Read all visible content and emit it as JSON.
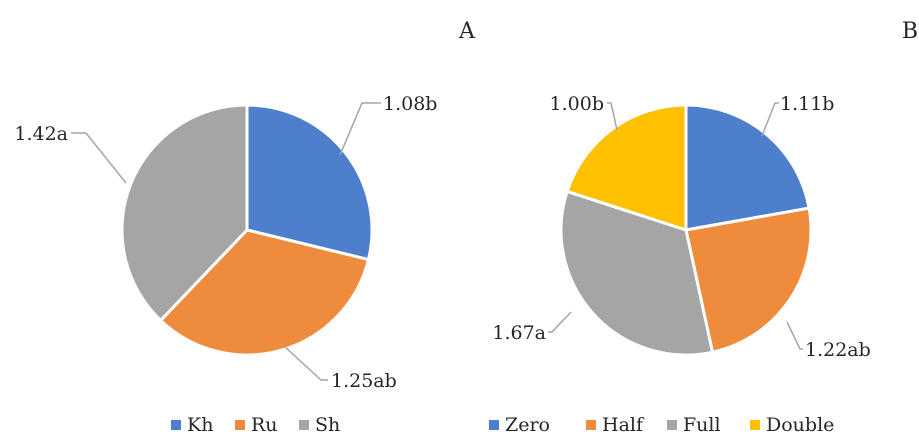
{
  "chart_data": [
    {
      "type": "pie",
      "panel": "A",
      "title": "",
      "categories": [
        "Kh",
        "Ru",
        "Sh"
      ],
      "values": [
        1.08,
        1.25,
        1.42
      ],
      "labels": [
        "1.08b",
        "1.25ab",
        "1.42a"
      ],
      "colors": [
        "#4e7fcc",
        "#ee8b3c",
        "#a5a5a5"
      ],
      "legend": "bottom"
    },
    {
      "type": "pie",
      "panel": "B",
      "title": "",
      "categories": [
        "Zero",
        "Half",
        "Full",
        "Double"
      ],
      "values": [
        1.11,
        1.22,
        1.67,
        1.0
      ],
      "labels": [
        "1.11b",
        "1.22ab",
        "1.67a",
        "1.00b"
      ],
      "colors": [
        "#4e7fcc",
        "#ee8b3c",
        "#a5a5a5",
        "#ffc000"
      ],
      "legend": "bottom"
    }
  ]
}
